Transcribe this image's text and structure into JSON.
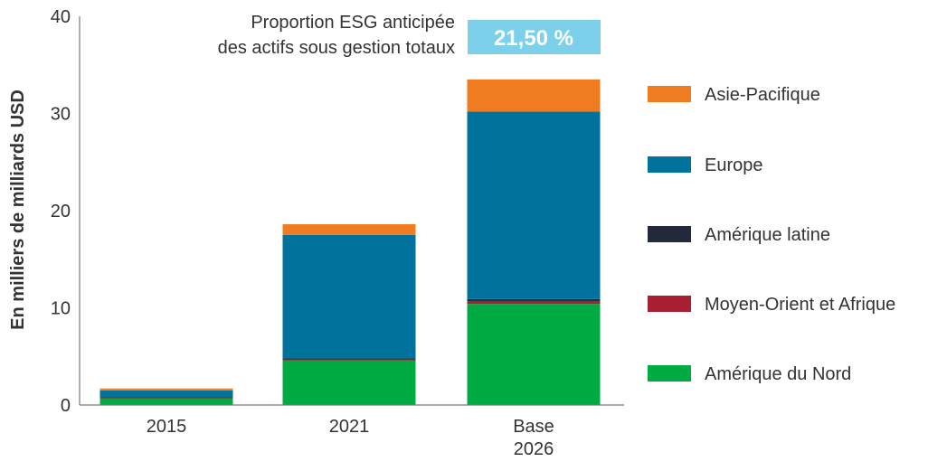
{
  "chart_data": {
    "type": "bar",
    "stacked": true,
    "categories": [
      [
        "2015"
      ],
      [
        "2021"
      ],
      [
        "Base",
        "2026"
      ]
    ],
    "ylabel": "En milliers de milliards USD",
    "ylim": [
      0,
      40
    ],
    "yticks": [
      "0",
      "10",
      "20",
      "30",
      "40"
    ],
    "grid": false,
    "legend_position": "right",
    "series": [
      {
        "name": "Amérique du Nord",
        "color": "#00ab44",
        "values": [
          0.7,
          4.6,
          10.4
        ]
      },
      {
        "name": "Moyen-Orient et Afrique",
        "color": "#a81e33",
        "values": [
          0.05,
          0.1,
          0.3
        ]
      },
      {
        "name": "Amérique latine",
        "color": "#22293a",
        "values": [
          0.05,
          0.1,
          0.2
        ]
      },
      {
        "name": "Europe",
        "color": "#00729b",
        "values": [
          0.7,
          12.7,
          19.3
        ]
      },
      {
        "name": "Asie-Pacifique",
        "color": "#f07c21",
        "values": [
          0.2,
          1.1,
          3.3
        ]
      }
    ],
    "annotation": {
      "lines": [
        "Proportion ESG anticipée",
        "des actifs sous gestion totaux"
      ],
      "value": "21,50 %",
      "color": "#7dd0ea"
    }
  }
}
